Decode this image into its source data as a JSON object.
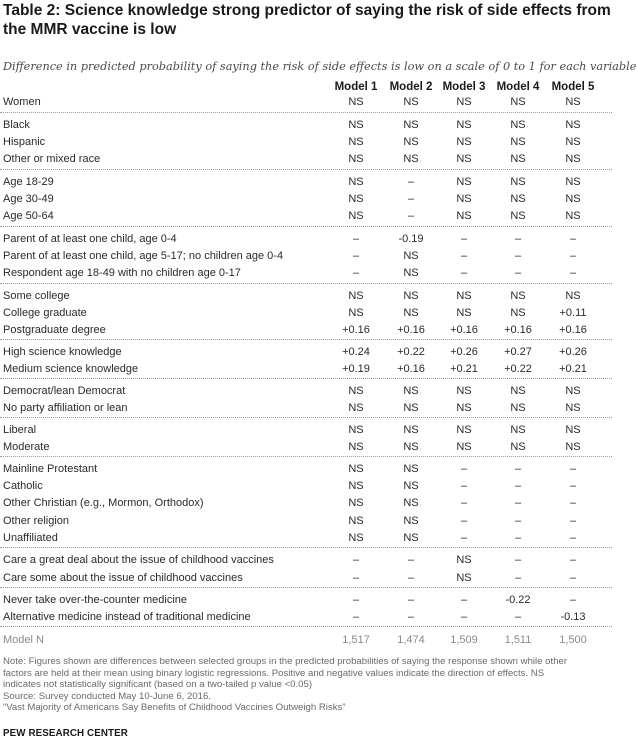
{
  "title": "Table 2: Science knowledge strong predictor of saying the risk of side effects from the MMR vaccine is low",
  "subtitle": "Difference in predicted probability of saying the risk of side effects is low on a scale of 0 to 1 for each variable",
  "columns": [
    "Model 1",
    "Model 2",
    "Model 3",
    "Model 4",
    "Model 5"
  ],
  "rows": [
    {
      "label": "Women",
      "values": [
        "NS",
        "NS",
        "NS",
        "NS",
        "NS"
      ]
    },
    {
      "label": "Black",
      "values": [
        "NS",
        "NS",
        "NS",
        "NS",
        "NS"
      ]
    },
    {
      "label": "Hispanic",
      "values": [
        "NS",
        "NS",
        "NS",
        "NS",
        "NS"
      ]
    },
    {
      "label": "Other or mixed race",
      "values": [
        "NS",
        "NS",
        "NS",
        "NS",
        "NS"
      ]
    },
    {
      "label": "Age 18-29",
      "values": [
        "NS",
        "–",
        "NS",
        "NS",
        "NS"
      ]
    },
    {
      "label": "Age 30-49",
      "values": [
        "NS",
        "–",
        "NS",
        "NS",
        "NS"
      ]
    },
    {
      "label": "Age 50-64",
      "values": [
        "NS",
        "–",
        "NS",
        "NS",
        "NS"
      ]
    },
    {
      "label": "Parent of at least one child, age 0-4",
      "values": [
        "–",
        "-0.19",
        "–",
        "–",
        "–"
      ]
    },
    {
      "label": "Parent of at least one child, age 5-17; no children age 0-4",
      "values": [
        "–",
        "NS",
        "–",
        "–",
        "–"
      ]
    },
    {
      "label": "Respondent age 18-49 with no children age 0-17",
      "values": [
        "–",
        "NS",
        "–",
        "–",
        "–"
      ]
    },
    {
      "label": "Some college",
      "values": [
        "NS",
        "NS",
        "NS",
        "NS",
        "NS"
      ]
    },
    {
      "label": "College graduate",
      "values": [
        "NS",
        "NS",
        "NS",
        "NS",
        "+0.11"
      ]
    },
    {
      "label": "Postgraduate degree",
      "values": [
        "+0.16",
        "+0.16",
        "+0.16",
        "+0.16",
        "+0.16"
      ]
    },
    {
      "label": "High science knowledge",
      "values": [
        "+0.24",
        "+0.22",
        "+0.26",
        "+0.27",
        "+0.26"
      ]
    },
    {
      "label": "Medium science knowledge",
      "values": [
        "+0.19",
        "+0.16",
        "+0.21",
        "+0.22",
        "+0.21"
      ]
    },
    {
      "label": "Democrat/lean Democrat",
      "values": [
        "NS",
        "NS",
        "NS",
        "NS",
        "NS"
      ]
    },
    {
      "label": "No party affiliation or lean",
      "values": [
        "NS",
        "NS",
        "NS",
        "NS",
        "NS"
      ]
    },
    {
      "label": "Liberal",
      "values": [
        "NS",
        "NS",
        "NS",
        "NS",
        "NS"
      ]
    },
    {
      "label": "Moderate",
      "values": [
        "NS",
        "NS",
        "NS",
        "NS",
        "NS"
      ]
    },
    {
      "label": "Mainline Protestant",
      "values": [
        "NS",
        "NS",
        "–",
        "–",
        "–"
      ]
    },
    {
      "label": "Catholic",
      "values": [
        "NS",
        "NS",
        "–",
        "–",
        "–"
      ]
    },
    {
      "label": "Other Christian (e.g., Mormon, Orthodox)",
      "values": [
        "NS",
        "NS",
        "–",
        "–",
        "–"
      ]
    },
    {
      "label": "Other religion",
      "values": [
        "NS",
        "NS",
        "–",
        "–",
        "–"
      ]
    },
    {
      "label": "Unaffiliated",
      "values": [
        "NS",
        "NS",
        "–",
        "–",
        "–"
      ]
    },
    {
      "label": "Care a great deal about the issue of childhood vaccines",
      "values": [
        "–",
        "–",
        "NS",
        "–",
        "–"
      ]
    },
    {
      "label": "Care some about the issue of childhood vaccines",
      "values": [
        "–",
        "–",
        "NS",
        "–",
        "–"
      ]
    },
    {
      "label": "Never take over-the-counter medicine",
      "values": [
        "–",
        "–",
        "–",
        "-0.22",
        "–"
      ]
    },
    {
      "label": "Alternative medicine instead of traditional medicine",
      "values": [
        "–",
        "–",
        "–",
        "–",
        "-0.13"
      ]
    },
    {
      "label": "Model N",
      "values": [
        "1,517",
        "1,474",
        "1,509",
        "1,511",
        "1,500"
      ]
    }
  ],
  "notes": [
    "Note: Figures shown are differences between selected groups in the predicted probabilities of saying the response shown while other",
    "factors are held at their mean using binary logistic regressions. Positive and negative values indicate the direction of effects. NS",
    "indicates not statistically significant (based on a two-tailed p value <0.05)",
    "Source: Survey conducted May 10-June 6, 2016.",
    "“Vast Majority of Americans Say Benefits of Childhood Vaccines Outweigh Risks”"
  ],
  "brand": "PEW RESEARCH CENTER"
}
